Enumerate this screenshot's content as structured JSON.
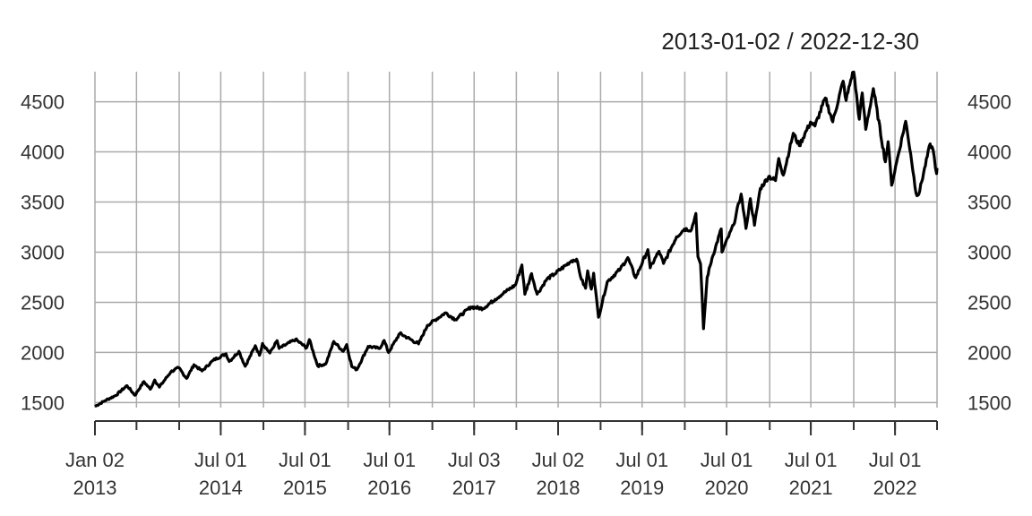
{
  "chart_data": {
    "type": "line",
    "title": "2013-01-02 / 2022-12-30",
    "xlabel": "",
    "ylabel": "",
    "x_range": [
      "2013-01-02",
      "2022-12-30"
    ],
    "ylim": [
      1450,
      4800
    ],
    "grid": true,
    "line_color": "#000000",
    "grid_color": "#aaaaaa",
    "y_ticks": [
      1500,
      2000,
      2500,
      3000,
      3500,
      4000,
      4500
    ],
    "y_tick_labels": [
      "1500",
      "2000",
      "2500",
      "3000",
      "3500",
      "4000",
      "4500"
    ],
    "x_minor_ticks": [
      "2013-01-02",
      "2013-07-01",
      "2014-01-02",
      "2014-07-01",
      "2015-01-02",
      "2015-07-01",
      "2016-01-04",
      "2016-07-01",
      "2017-01-03",
      "2017-07-03",
      "2018-01-02",
      "2018-07-02",
      "2019-01-02",
      "2019-07-01",
      "2020-01-02",
      "2020-07-01",
      "2021-01-04",
      "2021-07-01",
      "2022-01-03",
      "2022-07-01",
      "2022-12-30"
    ],
    "x_labels": [
      {
        "date": "2013-01-02",
        "line1": "Jan 02",
        "line2": "2013"
      },
      {
        "date": "2014-07-01",
        "line1": "Jul 01",
        "line2": "2014"
      },
      {
        "date": "2015-07-01",
        "line1": "Jul 01",
        "line2": "2015"
      },
      {
        "date": "2016-07-01",
        "line1": "Jul 01",
        "line2": "2016"
      },
      {
        "date": "2017-07-03",
        "line1": "Jul 03",
        "line2": "2017"
      },
      {
        "date": "2018-07-02",
        "line1": "Jul 02",
        "line2": "2018"
      },
      {
        "date": "2019-07-01",
        "line1": "Jul 01",
        "line2": "2019"
      },
      {
        "date": "2020-07-01",
        "line1": "Jul 01",
        "line2": "2020"
      },
      {
        "date": "2021-07-01",
        "line1": "Jul 01",
        "line2": "2021"
      },
      {
        "date": "2022-07-01",
        "line1": "Jul 01",
        "line2": "2022"
      }
    ],
    "series": [
      {
        "points": [
          [
            "2013-01-02",
            1462
          ],
          [
            "2013-02-15",
            1520
          ],
          [
            "2013-04-01",
            1570
          ],
          [
            "2013-05-21",
            1669
          ],
          [
            "2013-06-24",
            1573
          ],
          [
            "2013-08-02",
            1709
          ],
          [
            "2013-08-30",
            1633
          ],
          [
            "2013-09-18",
            1725
          ],
          [
            "2013-10-08",
            1655
          ],
          [
            "2013-11-27",
            1807
          ],
          [
            "2013-12-31",
            1848
          ],
          [
            "2014-02-03",
            1741
          ],
          [
            "2014-03-07",
            1878
          ],
          [
            "2014-04-11",
            1815
          ],
          [
            "2014-05-30",
            1923
          ],
          [
            "2014-07-24",
            1987
          ],
          [
            "2014-08-07",
            1910
          ],
          [
            "2014-09-18",
            2011
          ],
          [
            "2014-10-15",
            1862
          ],
          [
            "2014-11-28",
            2067
          ],
          [
            "2014-12-16",
            1972
          ],
          [
            "2014-12-29",
            2090
          ],
          [
            "2015-01-30",
            1995
          ],
          [
            "2015-03-02",
            2117
          ],
          [
            "2015-03-11",
            2040
          ],
          [
            "2015-05-21",
            2130
          ],
          [
            "2015-07-08",
            2046
          ],
          [
            "2015-07-20",
            2128
          ],
          [
            "2015-08-25",
            1867
          ],
          [
            "2015-09-29",
            1884
          ],
          [
            "2015-11-03",
            2109
          ],
          [
            "2015-12-14",
            2012
          ],
          [
            "2015-12-29",
            2078
          ],
          [
            "2016-01-20",
            1859
          ],
          [
            "2016-02-11",
            1829
          ],
          [
            "2016-03-31",
            2060
          ],
          [
            "2016-05-19",
            2040
          ],
          [
            "2016-06-08",
            2119
          ],
          [
            "2016-06-27",
            2000
          ],
          [
            "2016-08-15",
            2190
          ],
          [
            "2016-11-04",
            2085
          ],
          [
            "2016-12-13",
            2271
          ],
          [
            "2017-03-01",
            2395
          ],
          [
            "2017-04-13",
            2328
          ],
          [
            "2017-06-19",
            2453
          ],
          [
            "2017-08-10",
            2438
          ],
          [
            "2017-10-02",
            2529
          ],
          [
            "2017-11-07",
            2591
          ],
          [
            "2017-12-29",
            2673
          ],
          [
            "2018-01-26",
            2872
          ],
          [
            "2018-02-08",
            2581
          ],
          [
            "2018-03-09",
            2786
          ],
          [
            "2018-04-02",
            2581
          ],
          [
            "2018-05-14",
            2730
          ],
          [
            "2018-06-15",
            2780
          ],
          [
            "2018-08-29",
            2914
          ],
          [
            "2018-09-20",
            2930
          ],
          [
            "2018-10-11",
            2728
          ],
          [
            "2018-10-29",
            2641
          ],
          [
            "2018-11-07",
            2813
          ],
          [
            "2018-11-23",
            2632
          ],
          [
            "2018-12-03",
            2790
          ],
          [
            "2018-12-24",
            2351
          ],
          [
            "2019-01-31",
            2704
          ],
          [
            "2019-03-29",
            2834
          ],
          [
            "2019-04-30",
            2945
          ],
          [
            "2019-06-03",
            2744
          ],
          [
            "2019-07-26",
            3025
          ],
          [
            "2019-08-05",
            2844
          ],
          [
            "2019-09-12",
            3009
          ],
          [
            "2019-10-02",
            2887
          ],
          [
            "2019-11-27",
            3153
          ],
          [
            "2019-12-31",
            3230
          ],
          [
            "2020-01-31",
            3225
          ],
          [
            "2020-02-19",
            3386
          ],
          [
            "2020-02-28",
            2954
          ],
          [
            "2020-03-10",
            2882
          ],
          [
            "2020-03-23",
            2237
          ],
          [
            "2020-04-08",
            2750
          ],
          [
            "2020-04-29",
            2939
          ],
          [
            "2020-06-08",
            3232
          ],
          [
            "2020-06-11",
            3002
          ],
          [
            "2020-07-31",
            3271
          ],
          [
            "2020-09-02",
            3580
          ],
          [
            "2020-09-23",
            3237
          ],
          [
            "2020-10-12",
            3534
          ],
          [
            "2020-10-30",
            3269
          ],
          [
            "2020-11-24",
            3635
          ],
          [
            "2020-12-31",
            3756
          ],
          [
            "2021-01-29",
            3714
          ],
          [
            "2021-02-12",
            3934
          ],
          [
            "2021-03-04",
            3768
          ],
          [
            "2021-04-16",
            4185
          ],
          [
            "2021-05-12",
            4063
          ],
          [
            "2021-06-30",
            4297
          ],
          [
            "2021-07-19",
            4258
          ],
          [
            "2021-09-02",
            4537
          ],
          [
            "2021-10-04",
            4300
          ],
          [
            "2021-11-18",
            4705
          ],
          [
            "2021-12-01",
            4513
          ],
          [
            "2021-12-29",
            4793
          ],
          [
            "2022-01-03",
            4796
          ],
          [
            "2022-01-27",
            4326
          ],
          [
            "2022-02-09",
            4587
          ],
          [
            "2022-02-24",
            4225
          ],
          [
            "2022-03-29",
            4631
          ],
          [
            "2022-05-20",
            3901
          ],
          [
            "2022-06-01",
            4101
          ],
          [
            "2022-06-16",
            3667
          ],
          [
            "2022-07-08",
            3899
          ],
          [
            "2022-08-16",
            4305
          ],
          [
            "2022-09-07",
            3979
          ],
          [
            "2022-09-30",
            3586
          ],
          [
            "2022-10-12",
            3577
          ],
          [
            "2022-11-30",
            4080
          ],
          [
            "2022-12-13",
            4019
          ],
          [
            "2022-12-28",
            3783
          ],
          [
            "2022-12-30",
            3840
          ]
        ]
      }
    ]
  }
}
